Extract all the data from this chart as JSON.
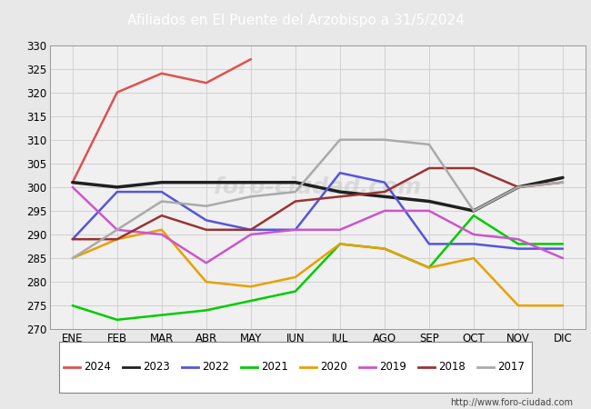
{
  "title": "Afiliados en El Puente del Arzobispo a 31/5/2024",
  "header_bg": "#4472c4",
  "ylim": [
    270,
    330
  ],
  "yticks": [
    270,
    275,
    280,
    285,
    290,
    295,
    300,
    305,
    310,
    315,
    320,
    325,
    330
  ],
  "months": [
    "ENE",
    "FEB",
    "MAR",
    "ABR",
    "MAY",
    "JUN",
    "JUL",
    "AGO",
    "SEP",
    "OCT",
    "NOV",
    "DIC"
  ],
  "series": {
    "2024": {
      "color": "#e05050",
      "linewidth": 1.8,
      "data": [
        301,
        320,
        324,
        322,
        327,
        null,
        null,
        null,
        null,
        null,
        null,
        null
      ]
    },
    "2023": {
      "color": "#202020",
      "linewidth": 2.5,
      "data": [
        301,
        300,
        301,
        301,
        301,
        301,
        299,
        298,
        297,
        295,
        300,
        302
      ]
    },
    "2022": {
      "color": "#5555dd",
      "linewidth": 1.8,
      "data": [
        289,
        299,
        299,
        293,
        291,
        291,
        303,
        301,
        288,
        288,
        287,
        287
      ]
    },
    "2021": {
      "color": "#00cc00",
      "linewidth": 1.8,
      "data": [
        275,
        272,
        273,
        274,
        276,
        278,
        288,
        287,
        283,
        294,
        288,
        288
      ]
    },
    "2020": {
      "color": "#e8a000",
      "linewidth": 1.8,
      "data": [
        285,
        289,
        291,
        280,
        279,
        281,
        288,
        287,
        283,
        285,
        275,
        275
      ]
    },
    "2019": {
      "color": "#cc55cc",
      "linewidth": 1.8,
      "data": [
        300,
        291,
        290,
        284,
        290,
        291,
        291,
        295,
        295,
        290,
        289,
        285
      ]
    },
    "2018": {
      "color": "#993333",
      "linewidth": 1.8,
      "data": [
        289,
        289,
        294,
        291,
        291,
        297,
        298,
        299,
        304,
        304,
        300,
        301
      ]
    },
    "2017": {
      "color": "#aaaaaa",
      "linewidth": 1.8,
      "data": [
        285,
        291,
        297,
        296,
        298,
        299,
        310,
        310,
        309,
        295,
        300,
        301
      ]
    }
  },
  "legend_order": [
    "2024",
    "2023",
    "2022",
    "2021",
    "2020",
    "2019",
    "2018",
    "2017"
  ],
  "footer_url": "http://www.foro-ciudad.com",
  "bg_color": "#e8e8e8",
  "plot_bg_color": "#f0f0f0",
  "grid_color": "#cccccc"
}
